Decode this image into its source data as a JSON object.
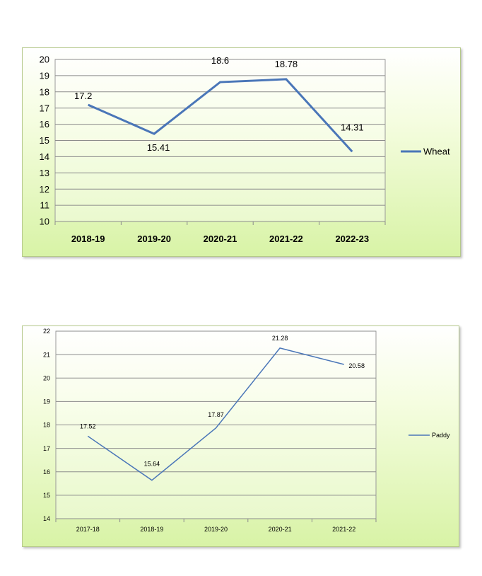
{
  "chart_data": [
    {
      "type": "line",
      "categories": [
        "2018-19",
        "2019-20",
        "2020-21",
        "2021-22",
        "2022-23"
      ],
      "series": [
        {
          "name": "Wheat",
          "values": [
            17.2,
            15.41,
            18.6,
            18.78,
            14.31
          ],
          "labels": [
            "17.2",
            "15.41",
            "18.6",
            "18.78",
            "14.31"
          ]
        }
      ],
      "ylim": [
        10,
        20
      ],
      "yticks": [
        "10",
        "11",
        "12",
        "13",
        "14",
        "15",
        "16",
        "17",
        "18",
        "19",
        "20"
      ],
      "grid": true,
      "legend": "right",
      "color": "#4a76b8"
    },
    {
      "type": "line",
      "categories": [
        "2017-18",
        "2018-19",
        "2019-20",
        "2020-21",
        "2021-22"
      ],
      "series": [
        {
          "name": "Paddy",
          "values": [
            17.52,
            15.64,
            17.87,
            21.28,
            20.58
          ],
          "labels": [
            "17.52",
            "15.64",
            "17.87",
            "21.28",
            "20.58"
          ]
        }
      ],
      "ylim": [
        14,
        22
      ],
      "yticks": [
        "14",
        "15",
        "16",
        "17",
        "18",
        "19",
        "20",
        "21",
        "22"
      ],
      "grid": true,
      "legend": "right",
      "color": "#4a76b8"
    }
  ]
}
